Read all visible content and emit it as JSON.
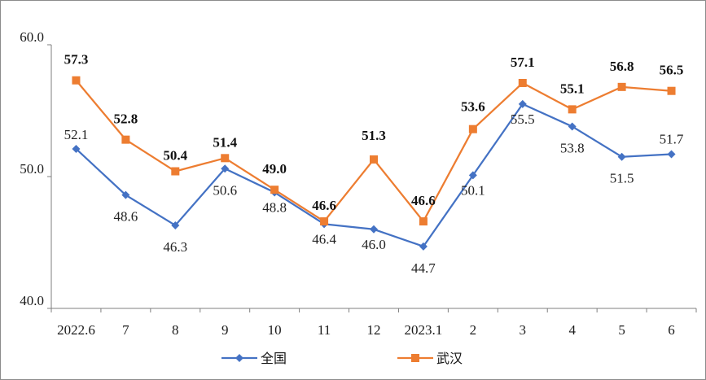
{
  "chart_data": {
    "type": "line",
    "categories": [
      "2022.6",
      "7",
      "8",
      "9",
      "10",
      "11",
      "12",
      "2023.1",
      "2",
      "3",
      "4",
      "5",
      "6"
    ],
    "series": [
      {
        "name": "全国",
        "color": "#4472C4",
        "marker": "diamond",
        "values": [
          52.1,
          48.6,
          46.3,
          50.6,
          48.8,
          46.4,
          46.0,
          44.7,
          50.1,
          55.5,
          53.8,
          51.5,
          51.7
        ]
      },
      {
        "name": "武汉",
        "color": "#ED7D31",
        "marker": "square",
        "values": [
          57.3,
          52.8,
          50.4,
          51.4,
          49.0,
          46.6,
          51.3,
          46.6,
          53.6,
          57.1,
          55.1,
          56.8,
          56.5
        ]
      }
    ],
    "y_ticks": [
      "40.0",
      "50.0",
      "60.0"
    ],
    "ylim": [
      40,
      60
    ],
    "grid": false,
    "legend_position": "bottom",
    "title": "",
    "xlabel": "",
    "ylabel": ""
  }
}
